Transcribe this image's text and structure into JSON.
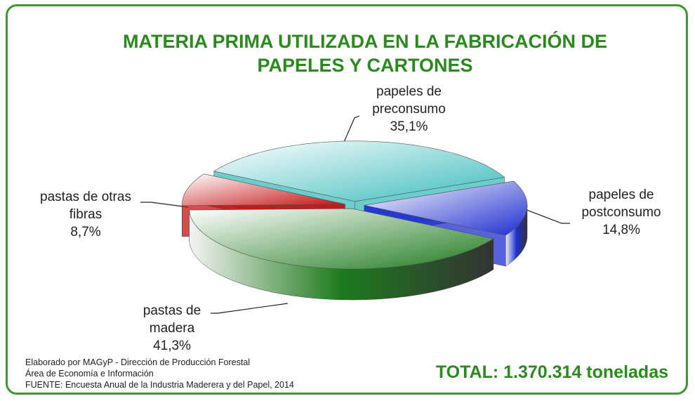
{
  "chart_data": {
    "type": "pie",
    "title": "MATERIA PRIMA UTILIZADA EN LA FABRICACIÓN DE PAPELES Y CARTONES",
    "categories": [
      "papeles de preconsumo",
      "papeles de postconsumo",
      "pastas de madera",
      "pastas de otras fibras"
    ],
    "values": [
      35.1,
      14.8,
      41.3,
      8.7
    ],
    "value_labels": [
      "35,1%",
      "14,8%",
      "41,3%",
      "8,7%"
    ],
    "colors": [
      "#3cbcbc",
      "#1f2fd0",
      "#1e7a1e",
      "#c41212"
    ],
    "total": "TOTAL: 1.370.314 toneladas",
    "notes": [
      "Elaborado por MAGyP - Dirección de Producción Forestal",
      "Área de Economía e Información",
      "FUENTE: Encuesta Anual de la Industria Maderera y del Papel, 2014"
    ]
  }
}
